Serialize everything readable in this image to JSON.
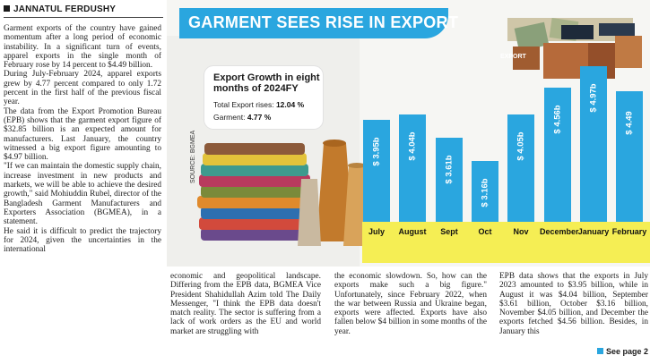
{
  "byline": "JANNATUL FERDUSHY",
  "column1": [
    "Garment exports of the country have gained momentum after a long period of economic instability. In a significant turn of events, apparel exports in the single month of February rose by 14 percent to $4.49 billion.",
    "During July-February 2024, apparel exports grew by 4.77 percent compared to only 1.72 percent in the first half of the previous fiscal year.",
    "The data from the Export Promotion Bureau (EPB) shows that the garment export figure of $32.85 billion is an expected amount for manufacturers. Last January, the country witnessed a big export figure amounting to $4.97 billion.",
    "\"If we can maintain the domestic supply chain, increase investment in new products and markets, we will be able to achieve the desired growth,\" said Mohiuddin Rubel, director of the Bangladesh Garment Manufacturers and Exporters Association (BGMEA), in a statement.",
    "He said it is difficult to predict the trajectory for 2024, given the uncertainties in the international"
  ],
  "column2": "economic and geopolitical landscape. Differing from the EPB data, BGMEA Vice President Shahidullah Azim told The Daily Messenger, \"I think the EPB data doesn't match reality. The sector is suffering from a lack of work orders as the EU and world market are struggling with",
  "column3": "the economic slowdown. So, how can the exports make such a big figure.\" Unfortunately, since February 2022, when the war between Russia and Ukraine began, exports were affected. Exports have also fallen below $4 billion in some months of the year.",
  "column4": "EPB data shows that the exports in July 2023 amounted to $3.95 billion, while in August it was $4.04 billion, September $3.61 billion, October $3.16 billion, November $4.05 billion, and December the exports fetched $4.56 billion. Besides, in January this",
  "see_page": "See page 2",
  "graphic": {
    "headline": "GARMENT SEES RISE IN EXPORT",
    "card_title": "Export Growth in eight months of 2024FY",
    "total_label": "Total Export rises:",
    "total_value": "12.04 %",
    "garment_label": "Garment:",
    "garment_value": "4.77 %",
    "source": "SOURCE: BGMEA",
    "box_label": "EXPORT",
    "colors": {
      "bar": "#2aa6df",
      "base": "#f5ee54",
      "banner": "#2aa6df"
    }
  },
  "chart_data": {
    "type": "bar",
    "categories": [
      "July",
      "August",
      "Sept",
      "Oct",
      "Nov",
      "December",
      "January",
      "February"
    ],
    "values": [
      3.95,
      4.04,
      3.61,
      3.16,
      4.05,
      4.56,
      4.97,
      4.49
    ],
    "labels": [
      "$ 3.95b",
      "$ 4.04b",
      "$ 3.61b",
      "$ 3.16b",
      "$ 4.05b",
      "$ 4.56b",
      "$ 4.97b",
      "$ 4.49"
    ]
  }
}
